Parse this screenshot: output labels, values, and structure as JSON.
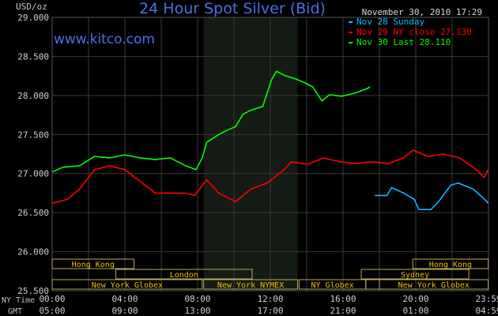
{
  "chart_data": {
    "type": "line",
    "title": "24 Hour Spot Silver (Bid)",
    "watermark": "www.kitco.com",
    "timestamp": "November 30, 2010 17:29",
    "ylabel": "USD/oz",
    "ylim": [
      25.5,
      29.0
    ],
    "yticks": [
      "29.000",
      "28.500",
      "28.000",
      "27.500",
      "27.000",
      "26.500",
      "26.000",
      "25.500"
    ],
    "xrow_labels": [
      "NY Time",
      "GMT"
    ],
    "xticks_ny": [
      "00:00",
      "04:00",
      "08:00",
      "12:00",
      "16:00",
      "20:00",
      "23:59"
    ],
    "xticks_gmt": [
      "05:00",
      "09:00",
      "13:00",
      "17:00",
      "21:00",
      "01:00",
      "04:59"
    ],
    "grid": true,
    "legend_position": "top-right",
    "highlight_band": {
      "from": "08:20",
      "to": "13:30",
      "color": "#141a14"
    },
    "sessions": [
      {
        "label": "Hong Kong",
        "row": 0,
        "from": "00:00",
        "to": "04:30"
      },
      {
        "label": "Hong Kong",
        "row": 0,
        "from": "19:50",
        "to": "23:59"
      },
      {
        "label": "London",
        "row": 1,
        "from": "03:30",
        "to": "11:00"
      },
      {
        "label": "Sydney",
        "row": 1,
        "from": "17:00",
        "to": "22:55"
      },
      {
        "label": "New York Globex",
        "row": 2,
        "from": "00:00",
        "to": "08:15"
      },
      {
        "label": "New York NYMEX",
        "row": 2,
        "from": "08:20",
        "to": "13:30"
      },
      {
        "label": "NY Globex",
        "row": 2,
        "from": "13:35",
        "to": "17:15"
      },
      {
        "label": "",
        "row": 2,
        "from": "17:15",
        "to": "18:00"
      },
      {
        "label": "New York Globex",
        "row": 2,
        "from": "18:00",
        "to": "23:59"
      }
    ],
    "series": [
      {
        "name": "Nov 28 Sunday",
        "color": "#00bfff",
        "x": [
          "17:45",
          "18:25",
          "18:40",
          "19:20",
          "19:55",
          "20:10",
          "20:50",
          "21:15",
          "21:55",
          "22:20",
          "23:10",
          "23:50",
          "23:59"
        ],
        "y": [
          26.72,
          26.72,
          26.82,
          26.75,
          26.67,
          26.54,
          26.54,
          26.64,
          26.85,
          26.88,
          26.8,
          26.66,
          26.62
        ]
      },
      {
        "name": "Nov 29 NY close 27.130",
        "color": "#ff0000",
        "x": [
          "00:00",
          "00:50",
          "01:30",
          "02:20",
          "03:10",
          "04:00",
          "04:50",
          "05:40",
          "06:30",
          "07:20",
          "07:50",
          "08:30",
          "09:10",
          "10:05",
          "10:55",
          "11:50",
          "12:45",
          "13:10",
          "14:05",
          "14:55",
          "15:50",
          "16:40",
          "17:35",
          "18:30",
          "19:20",
          "19:50",
          "20:40",
          "21:30",
          "22:25",
          "23:20",
          "23:45",
          "23:59"
        ],
        "y": [
          26.62,
          26.67,
          26.8,
          27.05,
          27.1,
          27.05,
          26.9,
          26.75,
          26.75,
          26.75,
          26.72,
          26.92,
          26.75,
          26.64,
          26.8,
          26.88,
          27.05,
          27.15,
          27.12,
          27.2,
          27.15,
          27.13,
          27.15,
          27.13,
          27.2,
          27.3,
          27.22,
          27.25,
          27.2,
          27.05,
          26.95,
          27.05
        ]
      },
      {
        "name": "Nov 30 Last 28.110",
        "color": "#00ff00",
        "x": [
          "00:00",
          "00:35",
          "01:30",
          "02:20",
          "03:10",
          "04:00",
          "04:50",
          "05:40",
          "06:30",
          "07:20",
          "07:55",
          "08:15",
          "08:30",
          "09:10",
          "09:35",
          "10:05",
          "10:30",
          "10:55",
          "11:35",
          "12:05",
          "12:20",
          "12:45",
          "13:25",
          "13:55",
          "14:20",
          "14:50",
          "15:15",
          "15:55",
          "16:40",
          "17:20",
          "17:29"
        ],
        "y": [
          27.02,
          27.08,
          27.1,
          27.22,
          27.2,
          27.24,
          27.2,
          27.18,
          27.2,
          27.1,
          27.05,
          27.2,
          27.4,
          27.5,
          27.55,
          27.6,
          27.76,
          27.81,
          27.86,
          28.21,
          28.31,
          28.26,
          28.21,
          28.16,
          28.11,
          27.93,
          28.01,
          27.99,
          28.03,
          28.09,
          28.11
        ]
      }
    ]
  }
}
